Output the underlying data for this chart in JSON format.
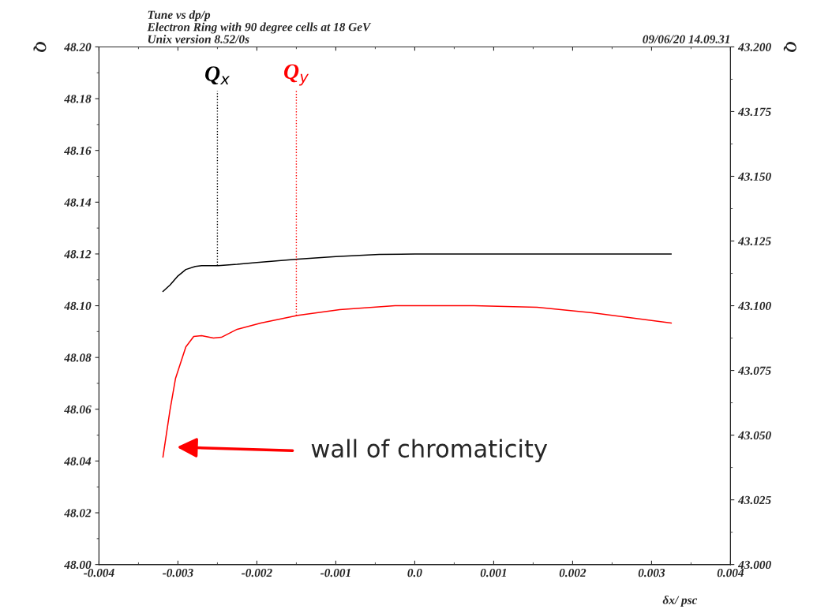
{
  "chart_data": {
    "type": "line",
    "title": "Tune vs dp/p",
    "subtitle": "Electron Ring with 90 degree cells at 18 GeV",
    "xlabel": "δx/ psc",
    "ylabel": "Q",
    "y2label": "Q",
    "xlim": [
      -0.004,
      0.004
    ],
    "xticks": [
      {
        "value": -0.004,
        "label": "-0.004"
      },
      {
        "value": -0.003,
        "label": "-0.003"
      },
      {
        "value": -0.002,
        "label": "-0.002"
      },
      {
        "value": -0.001,
        "label": "-0.001"
      },
      {
        "value": 0,
        "label": "0.0"
      },
      {
        "value": 0.001,
        "label": "0.001"
      },
      {
        "value": 0.002,
        "label": "0.002"
      },
      {
        "value": 0.003,
        "label": "0.003"
      },
      {
        "value": 0.004,
        "label": "0.004"
      }
    ],
    "ylim": [
      48.0,
      48.2
    ],
    "yticks": [
      {
        "value": 48.0,
        "label": "48.00"
      },
      {
        "value": 48.02,
        "label": "48.02"
      },
      {
        "value": 48.04,
        "label": "48.04"
      },
      {
        "value": 48.06,
        "label": "48.06"
      },
      {
        "value": 48.08,
        "label": "48.08"
      },
      {
        "value": 48.1,
        "label": "48.10"
      },
      {
        "value": 48.12,
        "label": "48.12"
      },
      {
        "value": 48.14,
        "label": "48.14"
      },
      {
        "value": 48.16,
        "label": "48.16"
      },
      {
        "value": 48.18,
        "label": "48.18"
      },
      {
        "value": 48.2,
        "label": "48.20"
      }
    ],
    "y2lim": [
      43.0,
      43.2
    ],
    "y2ticks": [
      {
        "value": 43.0,
        "label": "43.000"
      },
      {
        "value": 43.025,
        "label": "43.025"
      },
      {
        "value": 43.05,
        "label": "43.050"
      },
      {
        "value": 43.075,
        "label": "43.075"
      },
      {
        "value": 43.1,
        "label": "43.100"
      },
      {
        "value": 43.125,
        "label": "43.125"
      },
      {
        "value": 43.15,
        "label": "43.150"
      },
      {
        "value": 43.175,
        "label": "43.175"
      },
      {
        "value": 43.2,
        "label": "43.200"
      }
    ],
    "grid": false,
    "series": [
      {
        "color": "#000000",
        "x": [
          -0.00319,
          -0.0031,
          -0.003,
          -0.0029,
          -0.00278,
          -0.0027,
          -0.00249,
          -0.00225,
          -0.002,
          -0.00148,
          -0.001,
          -0.00045,
          0.0,
          0.00075,
          0.0015,
          0.00225,
          0.00325
        ],
        "values": [
          48.1055,
          48.108,
          48.1115,
          48.114,
          48.1152,
          48.1155,
          48.1155,
          48.116,
          48.1167,
          48.118,
          48.119,
          48.1198,
          48.12,
          48.12,
          48.12,
          48.12,
          48.12
        ]
      },
      {
        "color": "#ff0000",
        "axis": "y2",
        "x": [
          -0.00319,
          -0.0031,
          -0.00303,
          -0.0029,
          -0.0028,
          -0.0027,
          -0.00255,
          -0.00245,
          -0.00225,
          -0.00195,
          -0.00148,
          -0.00095,
          -0.00025,
          0.00075,
          0.00155,
          0.00225,
          0.00325
        ],
        "values": [
          43.0415,
          43.0598,
          43.072,
          43.0841,
          43.0881,
          43.0884,
          43.0875,
          43.0878,
          43.0909,
          43.0933,
          43.0963,
          43.0985,
          43.1,
          43.1,
          43.0994,
          43.0973,
          43.0933
        ]
      }
    ],
    "ref_lines": [
      {
        "axis": "x",
        "value": -0.0025,
        "label": "Q$_{x}$",
        "color": "#000000",
        "line_style": "dotted"
      },
      {
        "axis": "x",
        "value": -0.0015,
        "label": "Q$_{y}$",
        "color": "#ff0000",
        "line_style": "dotted"
      }
    ],
    "annotations": [
      "Unix version 8.52/0s",
      "09/06/20 14.09.31",
      "wall of chromaticity"
    ]
  }
}
